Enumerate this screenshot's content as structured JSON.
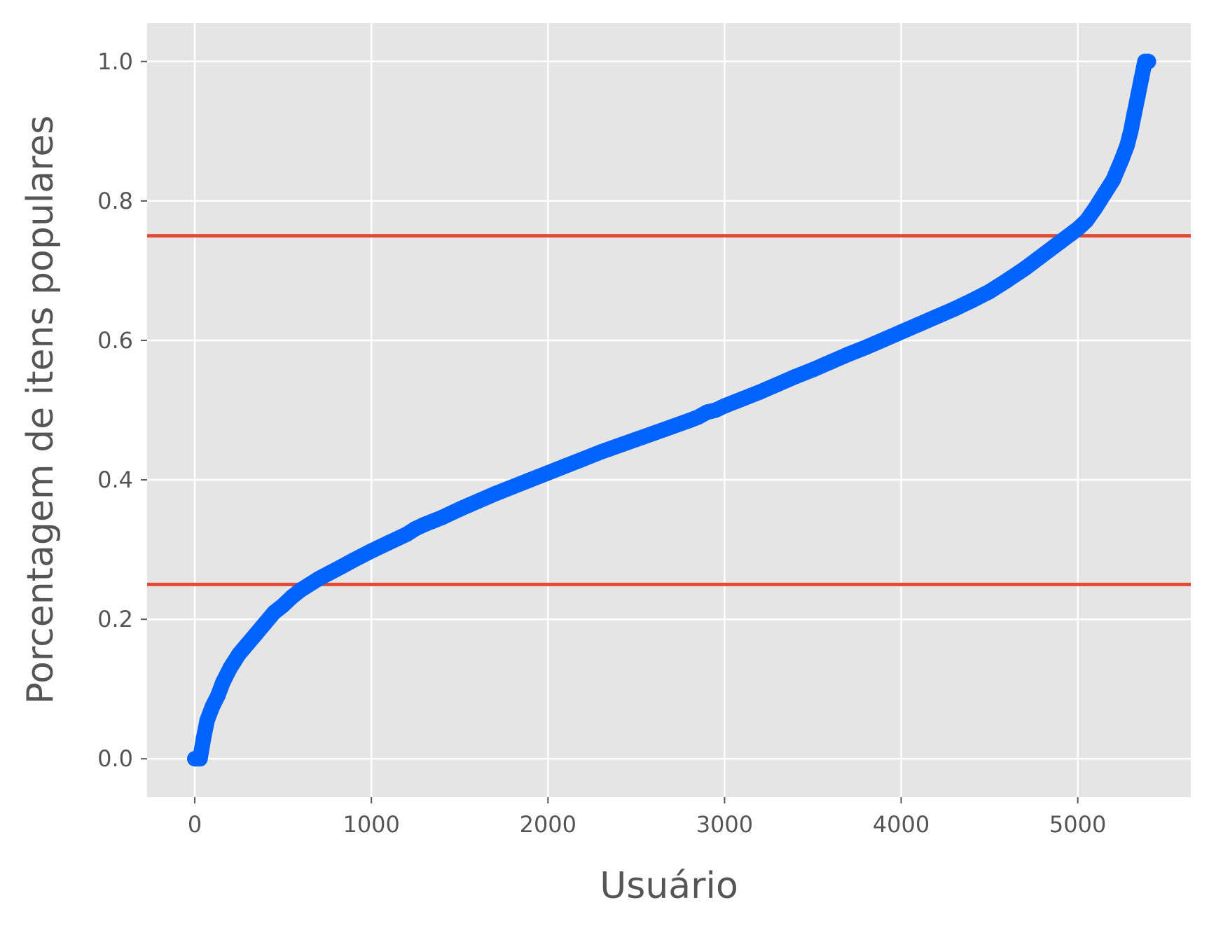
{
  "chart_data": {
    "type": "scatter",
    "title": "",
    "xlabel": "Usuário",
    "ylabel": "Porcentagem de itens populares",
    "xlim": [
      -270,
      5640
    ],
    "ylim": [
      -0.055,
      1.055
    ],
    "x_ticks": [
      0,
      1000,
      2000,
      3000,
      4000,
      5000
    ],
    "x_tick_labels": [
      "0",
      "1000",
      "2000",
      "3000",
      "4000",
      "5000"
    ],
    "y_ticks": [
      0.0,
      0.2,
      0.4,
      0.6,
      0.8,
      1.0
    ],
    "y_tick_labels": [
      "0.0",
      "0.2",
      "0.4",
      "0.6",
      "0.8",
      "1.0"
    ],
    "grid": true,
    "background_color": "#e5e5e5",
    "grid_color": "#ffffff",
    "series": [
      {
        "color": "#0062ff",
        "x": [
          0,
          30,
          50,
          70,
          100,
          130,
          160,
          200,
          250,
          300,
          350,
          400,
          450,
          500,
          550,
          600,
          650,
          700,
          760,
          820,
          900,
          1000,
          1100,
          1200,
          1250,
          1300,
          1400,
          1500,
          1600,
          1700,
          1800,
          1900,
          2000,
          2100,
          2200,
          2300,
          2400,
          2500,
          2600,
          2700,
          2800,
          2850,
          2900,
          2950,
          3000,
          3100,
          3200,
          3300,
          3400,
          3500,
          3600,
          3700,
          3800,
          3900,
          4000,
          4100,
          4200,
          4300,
          4400,
          4500,
          4600,
          4700,
          4800,
          4900,
          5000,
          5050,
          5100,
          5150,
          5200,
          5250,
          5280,
          5300,
          5320,
          5340,
          5360,
          5380,
          5400
        ],
        "y": [
          0.0,
          0.0,
          0.03,
          0.055,
          0.075,
          0.09,
          0.11,
          0.13,
          0.15,
          0.165,
          0.18,
          0.195,
          0.21,
          0.22,
          0.232,
          0.242,
          0.25,
          0.258,
          0.266,
          0.274,
          0.285,
          0.298,
          0.31,
          0.322,
          0.33,
          0.336,
          0.346,
          0.358,
          0.369,
          0.38,
          0.39,
          0.4,
          0.41,
          0.42,
          0.43,
          0.44,
          0.449,
          0.458,
          0.467,
          0.476,
          0.485,
          0.49,
          0.497,
          0.5,
          0.506,
          0.516,
          0.526,
          0.537,
          0.548,
          0.558,
          0.569,
          0.58,
          0.59,
          0.601,
          0.612,
          0.623,
          0.634,
          0.645,
          0.657,
          0.67,
          0.686,
          0.703,
          0.722,
          0.741,
          0.76,
          0.772,
          0.79,
          0.81,
          0.83,
          0.86,
          0.88,
          0.9,
          0.925,
          0.95,
          0.975,
          1.0,
          1.0
        ]
      }
    ],
    "reference_lines": [
      {
        "axis": "y",
        "value": 0.25,
        "color": "#e24a33"
      },
      {
        "axis": "y",
        "value": 0.75,
        "color": "#e24a33"
      }
    ]
  }
}
